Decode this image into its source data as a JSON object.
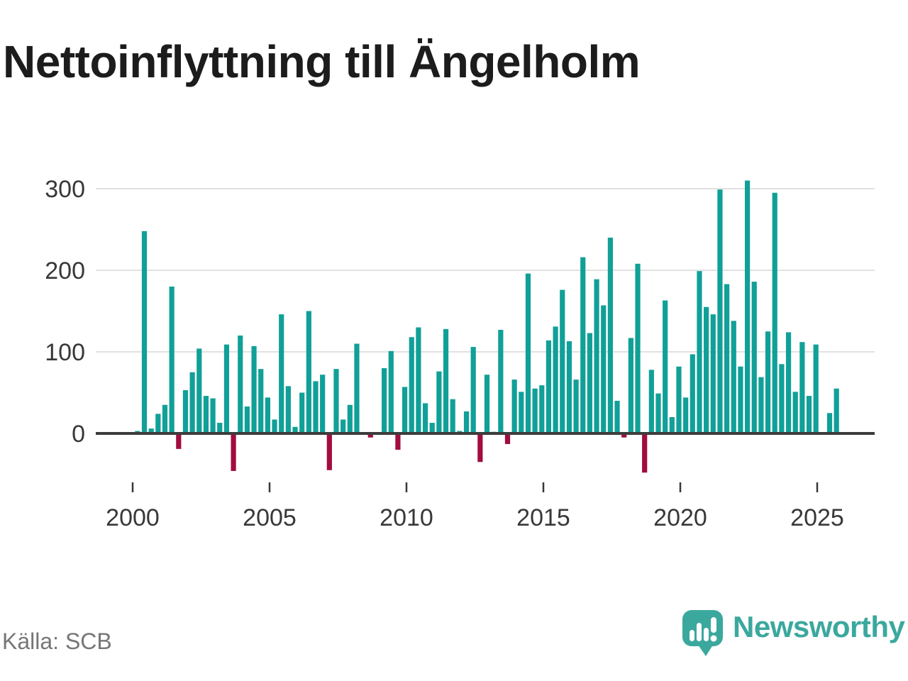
{
  "title": "Nettoinflyttning till Ängelholm",
  "source": {
    "text": "Källa: SCB"
  },
  "logo": {
    "text": "Newsworthy",
    "icon": "newsworthy-speech-bubble-chart-icon"
  },
  "colors": {
    "bar_positive": "#10a098",
    "bar_negative": "#a30c3e",
    "axis_line": "#3c3c3c",
    "gridline": "#e1e1e1",
    "tick_text": "#383838",
    "title_text": "#1c1c1c",
    "source_text": "#767676",
    "logo_teal": "#3ba89e",
    "background": "#ffffff"
  },
  "chart_data": {
    "type": "bar",
    "title": "Nettoinflyttning till Ängelholm",
    "xlabel": "",
    "ylabel": "",
    "unit": "net in-migration per quarter",
    "grid": "horizontal",
    "legend": "none",
    "y_ticks": [
      0,
      100,
      200,
      300
    ],
    "ylim": [
      -60,
      320
    ],
    "x_tick_labels": [
      "2000",
      "2005",
      "2010",
      "2015",
      "2020",
      "2025"
    ],
    "categories": [
      "2000Q1",
      "2000Q2",
      "2000Q3",
      "2000Q4",
      "2001Q1",
      "2001Q2",
      "2001Q3",
      "2001Q4",
      "2002Q1",
      "2002Q2",
      "2002Q3",
      "2002Q4",
      "2003Q1",
      "2003Q2",
      "2003Q3",
      "2003Q4",
      "2004Q1",
      "2004Q2",
      "2004Q3",
      "2004Q4",
      "2005Q1",
      "2005Q2",
      "2005Q3",
      "2005Q4",
      "2006Q1",
      "2006Q2",
      "2006Q3",
      "2006Q4",
      "2007Q1",
      "2007Q2",
      "2007Q3",
      "2007Q4",
      "2008Q1",
      "2008Q2",
      "2008Q3",
      "2008Q4",
      "2009Q1",
      "2009Q2",
      "2009Q3",
      "2009Q4",
      "2010Q1",
      "2010Q2",
      "2010Q3",
      "2010Q4",
      "2011Q1",
      "2011Q2",
      "2011Q3",
      "2011Q4",
      "2012Q1",
      "2012Q2",
      "2012Q3",
      "2012Q4",
      "2013Q1",
      "2013Q2",
      "2013Q3",
      "2013Q4",
      "2014Q1",
      "2014Q2",
      "2014Q3",
      "2014Q4",
      "2015Q1",
      "2015Q2",
      "2015Q3",
      "2015Q4",
      "2016Q1",
      "2016Q2",
      "2016Q3",
      "2016Q4",
      "2017Q1",
      "2017Q2",
      "2017Q3",
      "2017Q4",
      "2018Q1",
      "2018Q2",
      "2018Q3",
      "2018Q4",
      "2019Q1",
      "2019Q2",
      "2019Q3",
      "2019Q4",
      "2020Q1",
      "2020Q2",
      "2020Q3",
      "2020Q4",
      "2021Q1",
      "2021Q2",
      "2021Q3",
      "2021Q4",
      "2022Q1",
      "2022Q2",
      "2022Q3",
      "2022Q4",
      "2023Q1",
      "2023Q2",
      "2023Q3",
      "2023Q4",
      "2024Q1",
      "2024Q2",
      "2024Q3",
      "2024Q4",
      "2025Q1",
      "2025Q2",
      "2025Q3"
    ],
    "values": [
      3,
      248,
      6,
      24,
      35,
      180,
      -19,
      53,
      75,
      104,
      46,
      43,
      13,
      109,
      -46,
      120,
      33,
      107,
      79,
      44,
      17,
      146,
      58,
      8,
      50,
      150,
      64,
      72,
      -45,
      79,
      17,
      35,
      110,
      0,
      -5,
      0,
      80,
      101,
      -20,
      57,
      118,
      130,
      37,
      13,
      76,
      128,
      42,
      3,
      27,
      106,
      -35,
      72,
      2,
      127,
      -13,
      66,
      51,
      196,
      55,
      59,
      114,
      131,
      176,
      113,
      66,
      216,
      123,
      189,
      157,
      240,
      40,
      -5,
      117,
      208,
      -48,
      78,
      49,
      163,
      20,
      82,
      44,
      97,
      199,
      155,
      146,
      299,
      183,
      138,
      82,
      310,
      186,
      69,
      125,
      295,
      85,
      124,
      51,
      112,
      46,
      109,
      1,
      25,
      55
    ]
  }
}
